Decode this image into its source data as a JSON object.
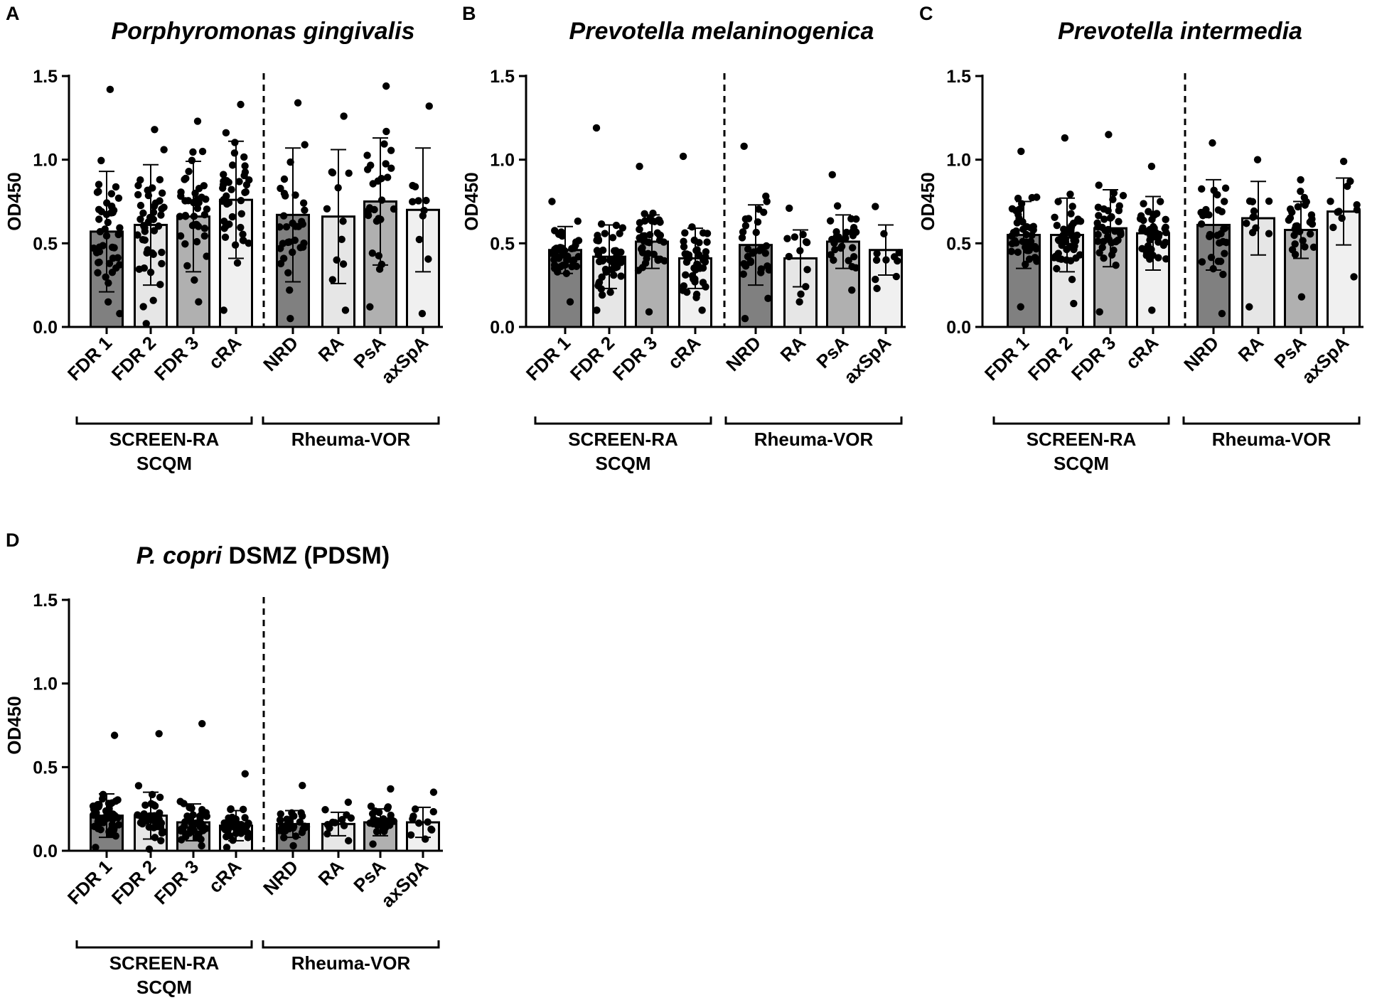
{
  "chart_data": [
    {
      "type": "bar",
      "panel": "A",
      "title": "Porphyromonas gingivalis",
      "title_parts": [
        {
          "text": "Porphyromonas gingivalis",
          "italic": true
        }
      ],
      "ylabel": "OD450",
      "ylim": [
        0,
        1.5
      ],
      "yticks": [
        "0.0",
        "0.5",
        "1.0",
        "1.5"
      ],
      "categories": [
        "FDR 1",
        "FDR 2",
        "FDR 3",
        "cRA",
        "NRD",
        "RA",
        "PsA",
        "axSpA"
      ],
      "values": [
        0.57,
        0.61,
        0.66,
        0.76,
        0.67,
        0.66,
        0.75,
        0.7
      ],
      "sd": [
        0.36,
        0.36,
        0.33,
        0.35,
        0.4,
        0.4,
        0.38,
        0.37
      ],
      "n": [
        44,
        44,
        40,
        42,
        32,
        12,
        28,
        11
      ],
      "pmin": [
        0.08,
        0.02,
        0.15,
        0.1,
        0.05,
        0.1,
        0.12,
        0.08
      ],
      "pmax": [
        1.42,
        1.18,
        1.23,
        1.33,
        1.34,
        1.26,
        1.44,
        1.32
      ],
      "colors": [
        "#808080",
        "#e6e6e6",
        "#b0b0b0",
        "#f0f0f0",
        "#808080",
        "#e6e6e6",
        "#b0b0b0",
        "#f0f0f0"
      ],
      "groups": [
        {
          "label": "SCREEN-RA\nSCQM",
          "lines": [
            "SCREEN-RA",
            "SCQM"
          ]
        },
        {
          "label": "Rheuma-VOR",
          "lines": [
            "Rheuma-VOR"
          ]
        }
      ]
    },
    {
      "type": "bar",
      "panel": "B",
      "title": "Prevotella melaninogenica",
      "title_parts": [
        {
          "text": "Prevotella melaninogenica",
          "italic": true
        }
      ],
      "ylabel": "OD450",
      "ylim": [
        0,
        1.5
      ],
      "yticks": [
        "0.0",
        "0.5",
        "1.0",
        "1.5"
      ],
      "categories": [
        "FDR 1",
        "FDR 2",
        "FDR 3",
        "cRA",
        "NRD",
        "RA",
        "PsA",
        "axSpA"
      ],
      "values": [
        0.46,
        0.42,
        0.51,
        0.41,
        0.49,
        0.41,
        0.51,
        0.46
      ],
      "sd": [
        0.14,
        0.19,
        0.16,
        0.18,
        0.24,
        0.17,
        0.16,
        0.15
      ],
      "n": [
        44,
        44,
        40,
        42,
        32,
        12,
        28,
        11
      ],
      "pmin": [
        0.15,
        0.1,
        0.09,
        0.1,
        0.05,
        0.15,
        0.22,
        0.23
      ],
      "pmax": [
        0.75,
        1.19,
        0.96,
        1.02,
        1.08,
        0.71,
        0.91,
        0.72
      ],
      "colors": [
        "#808080",
        "#e6e6e6",
        "#b0b0b0",
        "#f0f0f0",
        "#808080",
        "#e6e6e6",
        "#b0b0b0",
        "#f0f0f0"
      ],
      "groups": [
        {
          "label": "SCREEN-RA\nSCQM",
          "lines": [
            "SCREEN-RA",
            "SCQM"
          ]
        },
        {
          "label": "Rheuma-VOR",
          "lines": [
            "Rheuma-VOR"
          ]
        }
      ]
    },
    {
      "type": "bar",
      "panel": "C",
      "title": "Prevotella intermedia",
      "title_parts": [
        {
          "text": "Prevotella intermedia",
          "italic": true
        }
      ],
      "ylabel": "OD450",
      "ylim": [
        0,
        1.5
      ],
      "yticks": [
        "0.0",
        "0.5",
        "1.0",
        "1.5"
      ],
      "categories": [
        "FDR 1",
        "FDR 2",
        "FDR 3",
        "cRA",
        "NRD",
        "RA",
        "PsA",
        "axSpA"
      ],
      "values": [
        0.55,
        0.55,
        0.59,
        0.56,
        0.61,
        0.65,
        0.58,
        0.69
      ],
      "sd": [
        0.2,
        0.22,
        0.23,
        0.22,
        0.27,
        0.22,
        0.17,
        0.2
      ],
      "n": [
        44,
        44,
        40,
        42,
        32,
        12,
        28,
        11
      ],
      "pmin": [
        0.12,
        0.14,
        0.09,
        0.1,
        0.08,
        0.12,
        0.18,
        0.3
      ],
      "pmax": [
        1.05,
        1.13,
        1.15,
        0.96,
        1.1,
        1.0,
        0.88,
        0.99
      ],
      "colors": [
        "#808080",
        "#e6e6e6",
        "#b0b0b0",
        "#f0f0f0",
        "#808080",
        "#e6e6e6",
        "#b0b0b0",
        "#f0f0f0"
      ],
      "groups": [
        {
          "label": "SCREEN-RA\nSCQM",
          "lines": [
            "SCREEN-RA",
            "SCQM"
          ]
        },
        {
          "label": "Rheuma-VOR",
          "lines": [
            "Rheuma-VOR"
          ]
        }
      ]
    },
    {
      "type": "bar",
      "panel": "D",
      "title": "P. copri DSMZ (PDSM)",
      "title_parts": [
        {
          "text": "P. copri",
          "italic": true
        },
        {
          "text": " DSMZ (PDSM)",
          "italic": false
        }
      ],
      "ylabel": "OD450",
      "ylim": [
        0,
        1.5
      ],
      "yticks": [
        "0.0",
        "0.5",
        "1.0",
        "1.5"
      ],
      "categories": [
        "FDR 1",
        "FDR 2",
        "FDR 3",
        "cRA",
        "NRD",
        "RA",
        "PsA",
        "axSpA"
      ],
      "values": [
        0.21,
        0.21,
        0.17,
        0.15,
        0.16,
        0.16,
        0.17,
        0.17
      ],
      "sd": [
        0.13,
        0.14,
        0.11,
        0.09,
        0.08,
        0.07,
        0.08,
        0.09
      ],
      "n": [
        44,
        44,
        40,
        42,
        32,
        12,
        28,
        11
      ],
      "pmin": [
        0.02,
        0.01,
        0.03,
        0.02,
        0.03,
        0.06,
        0.04,
        0.07
      ],
      "pmax": [
        0.69,
        0.7,
        0.76,
        0.46,
        0.39,
        0.29,
        0.37,
        0.35
      ],
      "colors": [
        "#808080",
        "#e6e6e6",
        "#b0b0b0",
        "#f0f0f0",
        "#808080",
        "#e6e6e6",
        "#b0b0b0",
        "#f0f0f0"
      ],
      "groups": [
        {
          "label": "SCREEN-RA\nSCQM",
          "lines": [
            "SCREEN-RA",
            "SCQM"
          ]
        },
        {
          "label": "Rheuma-VOR",
          "lines": [
            "Rheuma-VOR"
          ]
        }
      ]
    }
  ]
}
